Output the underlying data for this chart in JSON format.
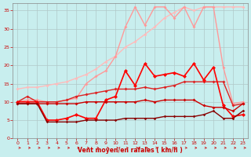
{
  "xlabel": "Vent moyen/en rafales ( km/h )",
  "background_color": "#c8eeee",
  "grid_color": "#b0c8c8",
  "xlim": [
    -0.5,
    23.5
  ],
  "ylim": [
    0,
    37
  ],
  "yticks": [
    0,
    5,
    10,
    15,
    20,
    25,
    30,
    35
  ],
  "xticks": [
    0,
    1,
    2,
    3,
    4,
    5,
    6,
    7,
    8,
    9,
    10,
    11,
    12,
    13,
    14,
    15,
    16,
    17,
    18,
    19,
    20,
    21,
    22,
    23
  ],
  "series": [
    {
      "x": [
        0,
        1,
        2,
        3,
        4,
        5,
        6,
        7,
        8,
        9,
        10,
        11,
        12,
        13,
        14,
        15,
        16,
        17,
        18,
        19,
        20,
        21,
        22,
        23
      ],
      "y": [
        13.5,
        14.0,
        14.0,
        14.5,
        15.0,
        15.5,
        16.5,
        17.5,
        19.0,
        21.0,
        22.5,
        25.0,
        26.5,
        28.5,
        30.5,
        33.0,
        34.5,
        36.0,
        35.0,
        36.0,
        36.0,
        36.0,
        36.0,
        36.0
      ],
      "color": "#ffbbbb",
      "lw": 1.0,
      "marker": "D",
      "ms": 2.0
    },
    {
      "x": [
        0,
        1,
        2,
        3,
        4,
        5,
        6,
        7,
        8,
        9,
        10,
        11,
        12,
        13,
        14,
        15,
        16,
        17,
        18,
        19,
        20,
        21,
        22,
        23
      ],
      "y": [
        10.0,
        10.5,
        10.5,
        10.0,
        10.0,
        10.5,
        11.0,
        15.0,
        17.0,
        18.5,
        22.5,
        30.5,
        36.0,
        31.0,
        36.0,
        36.0,
        33.0,
        36.0,
        30.5,
        36.0,
        36.0,
        19.5,
        9.5,
        10.0
      ],
      "color": "#ff9999",
      "lw": 1.0,
      "marker": "D",
      "ms": 2.0
    },
    {
      "x": [
        0,
        1,
        2,
        3,
        4,
        5,
        6,
        7,
        8,
        9,
        10,
        11,
        12,
        13,
        14,
        15,
        16,
        17,
        18,
        19,
        20,
        21,
        22,
        23
      ],
      "y": [
        10.0,
        11.5,
        10.0,
        10.0,
        10.0,
        10.5,
        11.5,
        12.0,
        12.5,
        13.0,
        13.5,
        13.5,
        13.5,
        14.0,
        13.5,
        14.0,
        14.5,
        15.5,
        15.5,
        15.5,
        15.5,
        15.5,
        9.0,
        9.5
      ],
      "color": "#dd2222",
      "lw": 1.0,
      "marker": "D",
      "ms": 2.0
    },
    {
      "x": [
        0,
        1,
        2,
        3,
        4,
        5,
        6,
        7,
        8,
        9,
        10,
        11,
        12,
        13,
        14,
        15,
        16,
        17,
        18,
        19,
        20,
        21,
        22,
        23
      ],
      "y": [
        10.0,
        10.0,
        10.0,
        5.0,
        5.0,
        5.5,
        6.5,
        5.5,
        5.5,
        10.5,
        11.5,
        18.5,
        14.5,
        20.5,
        17.0,
        17.5,
        18.0,
        17.0,
        20.5,
        16.0,
        19.5,
        9.0,
        6.0,
        6.5
      ],
      "color": "#ff0000",
      "lw": 1.2,
      "marker": "D",
      "ms": 2.5
    },
    {
      "x": [
        0,
        1,
        2,
        3,
        4,
        5,
        6,
        7,
        8,
        9,
        10,
        11,
        12,
        13,
        14,
        15,
        16,
        17,
        18,
        19,
        20,
        21,
        22,
        23
      ],
      "y": [
        9.5,
        9.5,
        9.5,
        9.5,
        9.5,
        9.5,
        9.5,
        10.0,
        10.0,
        10.0,
        10.0,
        10.0,
        10.0,
        10.5,
        10.0,
        10.5,
        10.5,
        10.5,
        10.5,
        9.0,
        8.5,
        8.5,
        7.5,
        9.5
      ],
      "color": "#cc0000",
      "lw": 1.0,
      "marker": "D",
      "ms": 2.0
    },
    {
      "x": [
        0,
        1,
        2,
        3,
        4,
        5,
        6,
        7,
        8,
        9,
        10,
        11,
        12,
        13,
        14,
        15,
        16,
        17,
        18,
        19,
        20,
        21,
        22,
        23
      ],
      "y": [
        9.5,
        9.5,
        9.5,
        4.5,
        4.5,
        4.5,
        4.5,
        5.0,
        5.0,
        5.0,
        5.0,
        5.5,
        5.5,
        5.5,
        5.5,
        6.0,
        6.0,
        6.0,
        6.0,
        6.5,
        7.5,
        5.5,
        5.5,
        7.5
      ],
      "color": "#880000",
      "lw": 1.0,
      "marker": "D",
      "ms": 1.8
    }
  ],
  "arrow_color": "#cc0000"
}
